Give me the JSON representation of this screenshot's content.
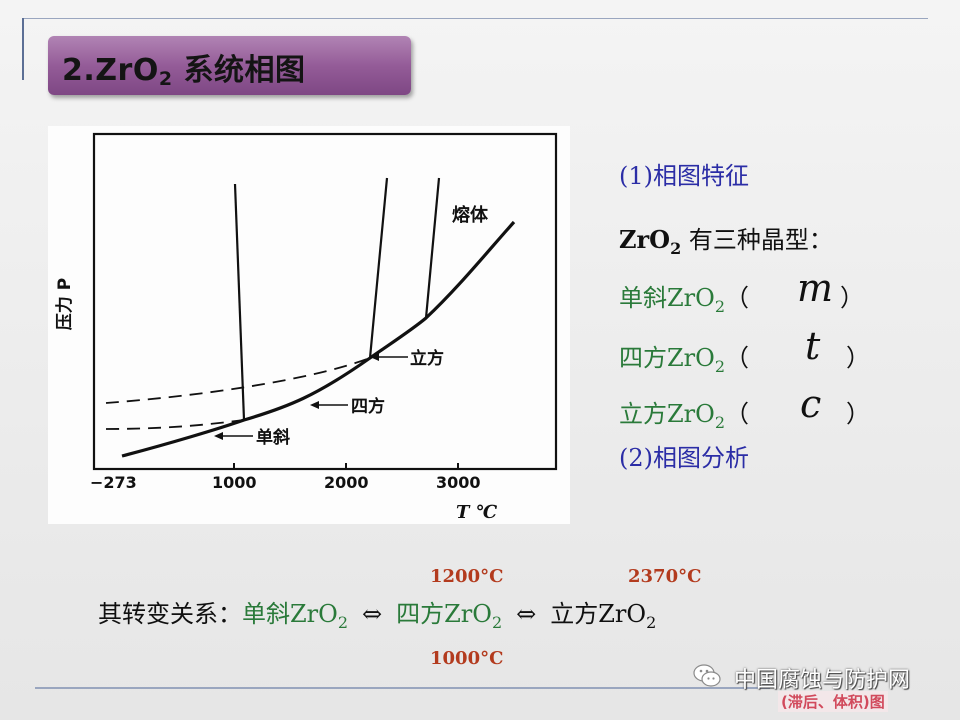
{
  "slide": {
    "title_main": "2.ZrO",
    "title_sub": "2",
    "title_suffix": " 系统相图"
  },
  "diagram": {
    "y_axis_label": "压力 P",
    "x_axis_label": "T ℃",
    "x_ticks": [
      "−273",
      "1000",
      "2000",
      "3000"
    ],
    "region_labels": {
      "melt": "熔体",
      "cubic": "立方",
      "tetragonal": "四方",
      "monoclinic": "单斜"
    }
  },
  "right_panel": {
    "heading1": "(1)相图特征",
    "intro_prefix": "ZrO",
    "intro_sub": "2",
    "intro_suffix": " 有三种晶型：",
    "forms": [
      {
        "name": "单斜ZrO",
        "sub": "2",
        "open": "（",
        "symbol": "m",
        "close": "）"
      },
      {
        "name": "四方ZrO",
        "sub": "2",
        "open": "（",
        "symbol": "t",
        "close": "）"
      },
      {
        "name": "立方ZrO",
        "sub": "2",
        "open": "（",
        "symbol": "c",
        "close": "）"
      }
    ],
    "heading2": "(2)相图分析"
  },
  "relation": {
    "lead": "其转变关系：",
    "phase1": "单斜ZrO",
    "phase1_sub": "2",
    "arrow": "⇔",
    "phase2": "四方ZrO",
    "phase2_sub": "2",
    "phase3": "立方ZrO",
    "phase3_sub": "2",
    "temp_heat_1": "1200°C",
    "temp_cool_1": "1000°C",
    "temp_heat_2": "2370°C"
  },
  "watermark": {
    "name": "中国腐蚀与防护网",
    "tag": "(滞后、体积)图"
  },
  "colors": {
    "title_bar": "#945c98",
    "heading_blue": "#2b2da6",
    "phase_green": "#2a7a3a",
    "temp_red": "#b33b1e"
  }
}
